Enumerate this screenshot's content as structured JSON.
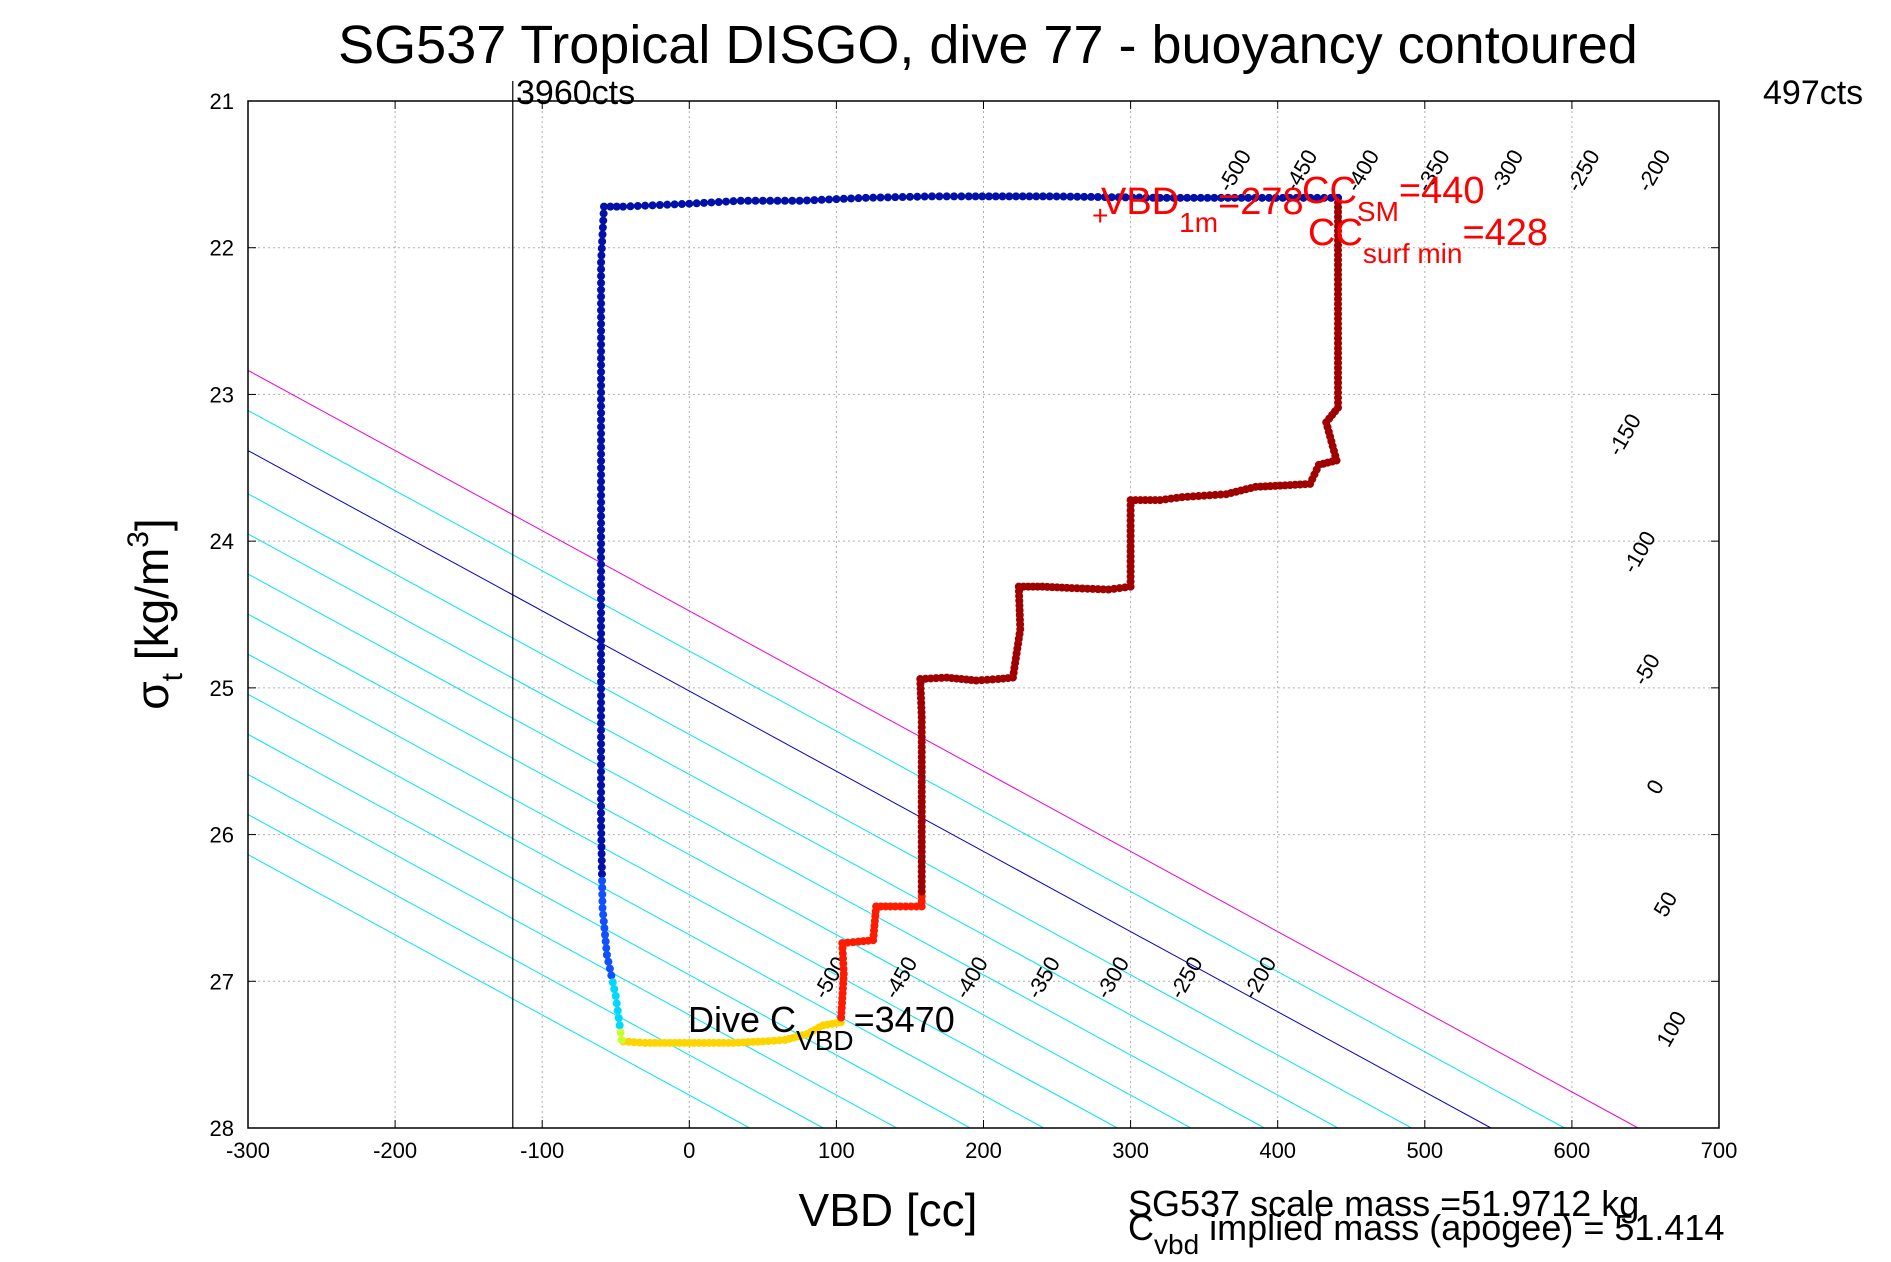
{
  "chart_data": {
    "type": "scatter",
    "title": "SG537 Tropical DISGO, dive 77 - buoyancy contoured",
    "xlabel": "VBD [cc]",
    "ylabel": {
      "base": "σ",
      "sub": "t",
      "unit_pre": " [kg/m",
      "unit_sup": "3",
      "unit_post": "]"
    },
    "xlim": [
      -300,
      700
    ],
    "ylim": [
      21,
      28
    ],
    "y_reversed": true,
    "grid": true,
    "xticks": [
      -300,
      -200,
      -100,
      0,
      100,
      200,
      300,
      400,
      500,
      600,
      700
    ],
    "yticks": [
      21,
      22,
      23,
      24,
      25,
      26,
      27,
      28
    ],
    "top_left_label": "3960cts",
    "top_right_label": "497cts",
    "vbd_min_line_x": -120,
    "contour_slope_cc_per_kgm3": 183,
    "contours": [
      {
        "level": -500,
        "label": "-500",
        "x_at_sigma28": 41,
        "color": "#00e5ee"
      },
      {
        "level": -450,
        "label": "-450",
        "x_at_sigma28": 91,
        "color": "#00e5ee"
      },
      {
        "level": -400,
        "label": "-400",
        "x_at_sigma28": 141,
        "color": "#00e5ee"
      },
      {
        "level": -350,
        "label": "-350",
        "x_at_sigma28": 191,
        "color": "#00e5ee"
      },
      {
        "level": -300,
        "label": "-300",
        "x_at_sigma28": 241,
        "color": "#00e5ee"
      },
      {
        "level": -250,
        "label": "-250",
        "x_at_sigma28": 291,
        "color": "#00e5ee"
      },
      {
        "level": -200,
        "label": "-200",
        "x_at_sigma28": 341,
        "color": "#00e5ee"
      },
      {
        "level": -150,
        "label": "-150",
        "x_at_sigma28": 391,
        "color": "#00e5ee"
      },
      {
        "level": -100,
        "label": "-100",
        "x_at_sigma28": 441,
        "color": "#00e5ee"
      },
      {
        "level": -50,
        "label": "-50",
        "x_at_sigma28": 491,
        "color": "#00e5ee"
      },
      {
        "level": 0,
        "label": "0",
        "x_at_sigma28": 545,
        "color": "#0000cc"
      },
      {
        "level": 50,
        "label": "50",
        "x_at_sigma28": 595,
        "color": "#00e5ee"
      },
      {
        "level": 100,
        "label": "100",
        "x_at_sigma28": 645,
        "color": "#ee00cc"
      }
    ],
    "contour_labels_upper": [
      {
        "label": "-500",
        "x": 375,
        "y": 21.5
      },
      {
        "label": "-450",
        "x": 420,
        "y": 21.5
      },
      {
        "label": "-400",
        "x": 462,
        "y": 21.5
      },
      {
        "label": "-350",
        "x": 510,
        "y": 21.5
      },
      {
        "label": "-300",
        "x": 560,
        "y": 21.5
      },
      {
        "label": "-250",
        "x": 612,
        "y": 21.5
      },
      {
        "label": "-200",
        "x": 660,
        "y": 21.5
      },
      {
        "label": "-150",
        "x": 640,
        "y": 23.3
      },
      {
        "label": "-100",
        "x": 650,
        "y": 24.1
      },
      {
        "label": "-50",
        "x": 655,
        "y": 24.9
      },
      {
        "label": "0",
        "x": 661,
        "y": 25.7
      },
      {
        "label": "50",
        "x": 668,
        "y": 26.5
      },
      {
        "label": "100",
        "x": 672,
        "y": 27.35
      }
    ],
    "contour_labels_lower": [
      {
        "label": "-500",
        "x": 100,
        "y": 27.0
      },
      {
        "label": "-450",
        "x": 148,
        "y": 27.0
      },
      {
        "label": "-400",
        "x": 196,
        "y": 27.0
      },
      {
        "label": "-350",
        "x": 245,
        "y": 27.0
      },
      {
        "label": "-300",
        "x": 292,
        "y": 27.0
      },
      {
        "label": "-250",
        "x": 342,
        "y": 27.0
      },
      {
        "label": "-200",
        "x": 392,
        "y": 27.0
      }
    ],
    "dive_trace": [
      [
        -45,
        27.41
      ],
      [
        -30,
        27.42
      ],
      [
        -10,
        27.42
      ],
      [
        10,
        27.42
      ],
      [
        30,
        27.42
      ],
      [
        50,
        27.41
      ],
      [
        65,
        27.4
      ],
      [
        80,
        27.36
      ],
      [
        91,
        27.3
      ],
      [
        103,
        27.28
      ],
      [
        105,
        26.95
      ],
      [
        104,
        26.74
      ],
      [
        115,
        26.73
      ],
      [
        125,
        26.72
      ],
      [
        127,
        26.49
      ],
      [
        140,
        26.49
      ],
      [
        158,
        26.49
      ],
      [
        158,
        25.2
      ],
      [
        157,
        24.94
      ],
      [
        175,
        24.93
      ],
      [
        195,
        24.95
      ],
      [
        210,
        24.94
      ],
      [
        220,
        24.93
      ],
      [
        225,
        24.6
      ],
      [
        224,
        24.31
      ],
      [
        240,
        24.31
      ],
      [
        260,
        24.32
      ],
      [
        285,
        24.33
      ],
      [
        300,
        24.31
      ],
      [
        300,
        24.0
      ],
      [
        300,
        23.72
      ],
      [
        320,
        23.72
      ],
      [
        335,
        23.7
      ],
      [
        350,
        23.69
      ],
      [
        365,
        23.68
      ],
      [
        385,
        23.63
      ],
      [
        405,
        23.62
      ],
      [
        422,
        23.61
      ],
      [
        428,
        23.48
      ],
      [
        440,
        23.45
      ],
      [
        433,
        23.19
      ],
      [
        441,
        23.09
      ],
      [
        441,
        22.92
      ],
      [
        441,
        22.45
      ],
      [
        441,
        21.95
      ],
      [
        441,
        21.66
      ]
    ],
    "climb_trace": [
      [
        441,
        21.66
      ],
      [
        380,
        21.66
      ],
      [
        320,
        21.66
      ],
      [
        245,
        21.65
      ],
      [
        190,
        21.65
      ],
      [
        165,
        21.65
      ],
      [
        120,
        21.66
      ],
      [
        75,
        21.68
      ],
      [
        35,
        21.68
      ],
      [
        0,
        21.7
      ],
      [
        -45,
        21.72
      ],
      [
        -58,
        21.72
      ],
      [
        -60,
        22.1
      ],
      [
        -60,
        22.8
      ],
      [
        -60,
        23.5
      ],
      [
        -60,
        24.3
      ],
      [
        -60,
        25.1
      ],
      [
        -60,
        25.9
      ],
      [
        -59,
        26.5
      ],
      [
        -56,
        26.82
      ],
      [
        -50,
        27.1
      ],
      [
        -46,
        27.4
      ]
    ],
    "annotations": {
      "vbd1m": {
        "text": "VBD",
        "sub": "1m",
        "value": "=278",
        "x": 278,
        "y": 21.82
      },
      "cc_sm": {
        "text": "CC",
        "sub": "SM",
        "value": "=440",
        "x": 445,
        "y": 21.7
      },
      "cc_surf_min": {
        "text": "CC",
        "sub": "surf min",
        "value": "=428",
        "x": 426,
        "y": 22.02
      },
      "dive_cvbd": {
        "text": "Dive C",
        "sub": "VBD",
        "value": "=3470",
        "x": 0,
        "y": 27.3
      }
    },
    "footer": {
      "scale_mass": "SG537 scale mass =51.9712 kg",
      "implied_mass": {
        "text": "C",
        "sub": "vbd",
        "value": " implied mass (apogee) = 51.414"
      }
    }
  }
}
